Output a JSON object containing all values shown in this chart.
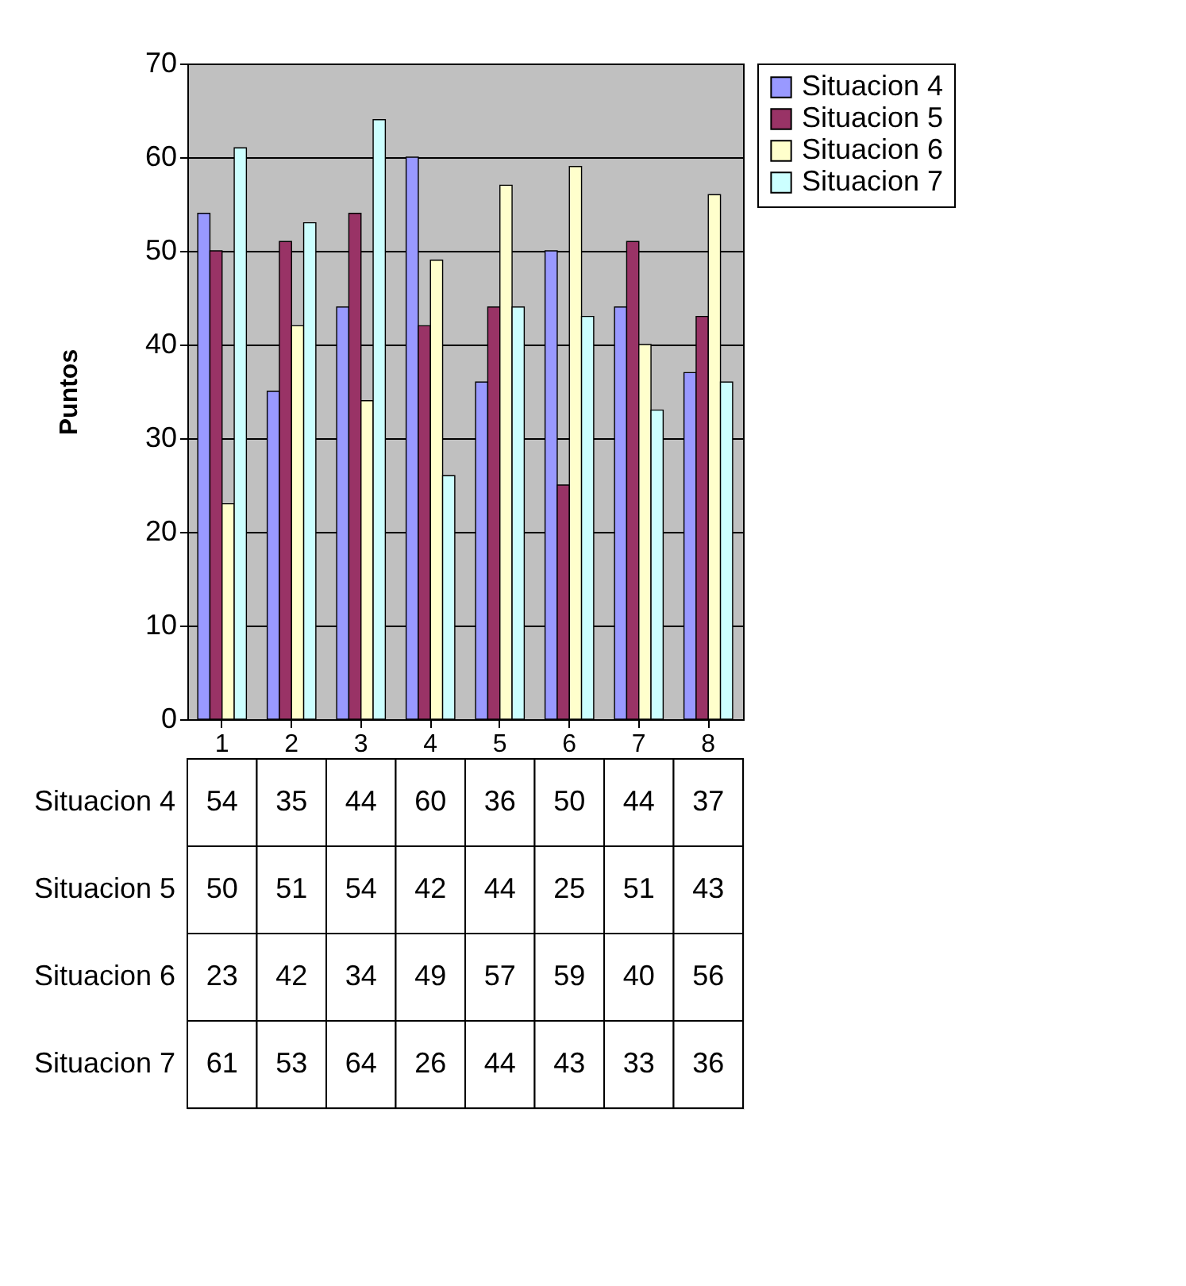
{
  "chart_data": {
    "type": "bar",
    "ylabel": "Puntos",
    "categories": [
      "1",
      "2",
      "3",
      "4",
      "5",
      "6",
      "7",
      "8"
    ],
    "series": [
      {
        "name": "Situacion 4",
        "color": "#9999ff",
        "values": [
          54,
          35,
          44,
          60,
          36,
          50,
          44,
          37
        ]
      },
      {
        "name": "Situacion 5",
        "color": "#993366",
        "values": [
          50,
          51,
          54,
          42,
          44,
          25,
          51,
          43
        ]
      },
      {
        "name": "Situacion 6",
        "color": "#ffffcc",
        "values": [
          23,
          42,
          34,
          49,
          57,
          59,
          40,
          56
        ]
      },
      {
        "name": "Situacion 7",
        "color": "#ccffff",
        "values": [
          61,
          53,
          64,
          26,
          44,
          43,
          33,
          36
        ]
      }
    ],
    "ylim": [
      0,
      70
    ],
    "yticks": [
      0,
      10,
      20,
      30,
      40,
      50,
      60,
      70
    ],
    "grid": "y",
    "legend": "right",
    "data_labels": true
  }
}
